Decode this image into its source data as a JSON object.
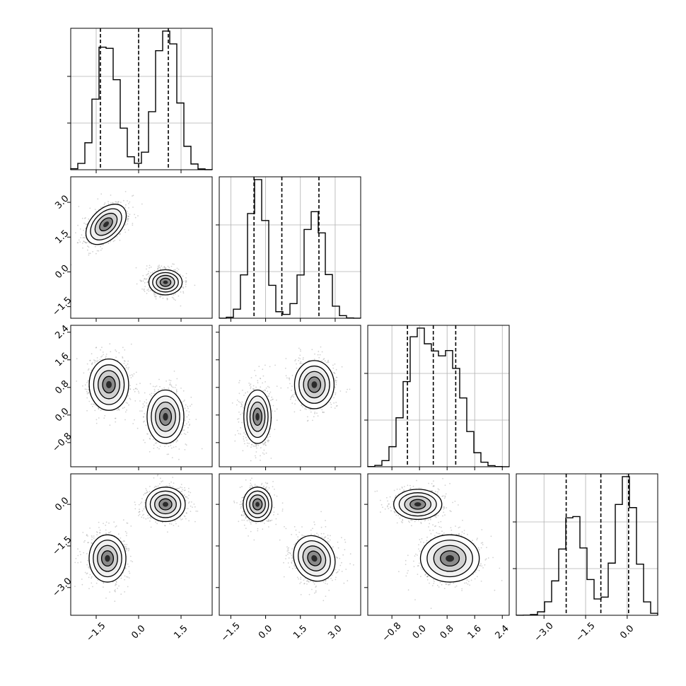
{
  "chart_data": {
    "type": "corner",
    "grid": true,
    "colors": {
      "line": "#000000",
      "grid": "#b0b0b0",
      "scatter": "#7f7f7f",
      "frame": "#000000"
    },
    "variables": [
      {
        "name": "",
        "range": [
          -2.4,
          2.6
        ],
        "ticks": [
          -1.5,
          0.0,
          1.5
        ],
        "tick_labels": [
          "−1.5",
          "0.0",
          "1.5"
        ],
        "quantiles": [
          -1.35,
          0.0,
          1.05
        ],
        "modes": [
          {
            "c": -1.1,
            "s": 0.38,
            "w": 0.47
          },
          {
            "c": 1.0,
            "s": 0.38,
            "w": 0.53
          }
        ]
      },
      {
        "name": "",
        "range": [
          -2.0,
          4.1
        ],
        "ticks": [
          -1.5,
          0.0,
          1.5,
          3.0
        ],
        "tick_labels": [
          "−1.5",
          "0.0",
          "1.5",
          "3.0"
        ],
        "quantiles": [
          -0.5,
          0.7,
          2.3
        ],
        "modes": [
          {
            "c": -0.35,
            "s": 0.38,
            "w": 0.52
          },
          {
            "c": 2.1,
            "s": 0.45,
            "w": 0.48
          }
        ]
      },
      {
        "name": "",
        "range": [
          -1.5,
          2.6
        ],
        "ticks": [
          -0.8,
          0.0,
          0.8,
          1.6,
          2.4
        ],
        "tick_labels": [
          "−0.8",
          "0.0",
          "0.8",
          "1.6",
          "2.4"
        ],
        "quantiles": [
          -0.35,
          0.4,
          1.05
        ],
        "modes": [
          {
            "c": -0.05,
            "s": 0.38,
            "w": 0.53
          },
          {
            "c": 0.88,
            "s": 0.4,
            "w": 0.47
          }
        ]
      },
      {
        "name": "",
        "range": [
          -4.0,
          1.1
        ],
        "ticks": [
          -3.0,
          -1.5,
          0.0
        ],
        "tick_labels": [
          "−3.0",
          "−1.5",
          "0.0"
        ],
        "quantiles": [
          -2.2,
          -0.95,
          0.05
        ],
        "modes": [
          {
            "c": -1.95,
            "s": 0.45,
            "w": 0.47
          },
          {
            "c": -0.05,
            "s": 0.35,
            "w": 0.53
          }
        ]
      }
    ],
    "panels": [
      {
        "row": 1,
        "col": 0,
        "clusters": [
          {
            "cx": -1.15,
            "cy": 2.05,
            "rx": 0.55,
            "ry": 0.42,
            "angle": -45
          },
          {
            "cx": 0.95,
            "cy": -0.45,
            "rx": 0.38,
            "ry": 0.35,
            "angle": 0
          }
        ]
      },
      {
        "row": 2,
        "col": 0,
        "clusters": [
          {
            "cx": -1.05,
            "cy": 0.88,
            "rx": 0.45,
            "ry": 0.48,
            "angle": 0
          },
          {
            "cx": 0.95,
            "cy": -0.05,
            "rx": 0.42,
            "ry": 0.5,
            "angle": 0
          }
        ]
      },
      {
        "row": 2,
        "col": 1,
        "clusters": [
          {
            "cx": -0.35,
            "cy": -0.05,
            "rx": 0.38,
            "ry": 0.5,
            "angle": 0
          },
          {
            "cx": 2.1,
            "cy": 0.88,
            "rx": 0.55,
            "ry": 0.45,
            "angle": 0
          }
        ]
      },
      {
        "row": 3,
        "col": 0,
        "clusters": [
          {
            "cx": -1.1,
            "cy": -1.95,
            "rx": 0.42,
            "ry": 0.55,
            "angle": 0
          },
          {
            "cx": 0.95,
            "cy": 0.0,
            "rx": 0.45,
            "ry": 0.4,
            "angle": 0
          }
        ]
      },
      {
        "row": 3,
        "col": 1,
        "clusters": [
          {
            "cx": -0.35,
            "cy": 0.0,
            "rx": 0.4,
            "ry": 0.4,
            "angle": 0
          },
          {
            "cx": 2.1,
            "cy": -1.95,
            "rx": 0.55,
            "ry": 0.55,
            "angle": -30
          }
        ]
      },
      {
        "row": 3,
        "col": 2,
        "clusters": [
          {
            "cx": -0.05,
            "cy": 0.0,
            "rx": 0.45,
            "ry": 0.35,
            "angle": 0
          },
          {
            "cx": 0.88,
            "cy": -1.95,
            "rx": 0.55,
            "ry": 0.55,
            "angle": 0
          }
        ]
      }
    ]
  }
}
